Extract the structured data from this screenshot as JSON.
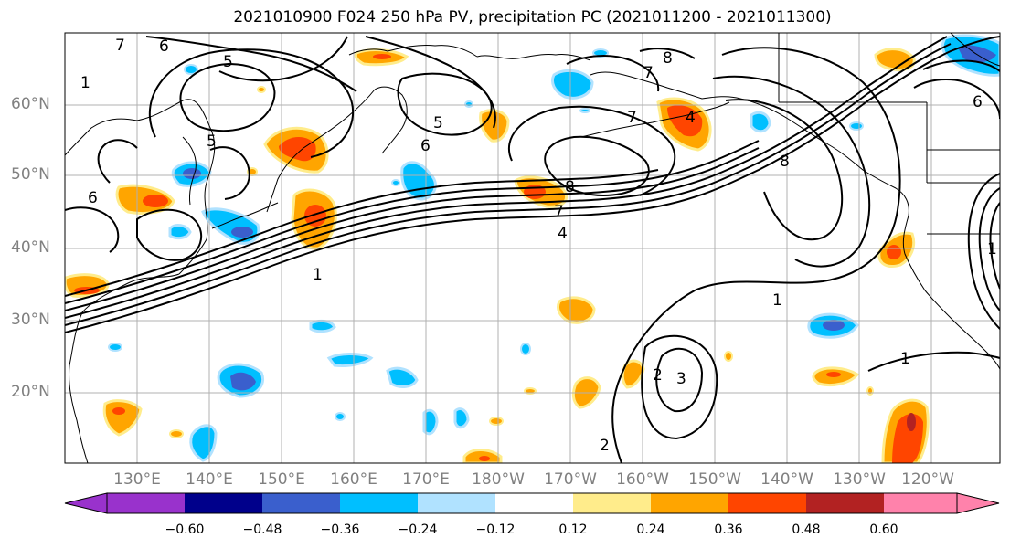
{
  "title": "2021010900 F024 250 hPa PV, precipitation PC (2021011200 - 2021011300)",
  "lat_labels": [
    "60°N",
    "50°N",
    "40°N",
    "30°N",
    "20°N"
  ],
  "lon_labels": [
    "130°E",
    "140°E",
    "150°E",
    "160°E",
    "170°E",
    "180°W",
    "170°W",
    "160°W",
    "150°W",
    "140°W",
    "130°W",
    "120°W"
  ],
  "colorbar": {
    "colors": [
      "#9932cc",
      "#00008b",
      "#3a5fcd",
      "#00bfff",
      "#b0e2ff",
      "#ffffff",
      "#ffec8b",
      "#ffa500",
      "#ff4500",
      "#b22222",
      "#ff82ab"
    ],
    "tick_labels": [
      "−0.60",
      "−0.48",
      "−0.36",
      "−0.24",
      "−0.12",
      "0.12",
      "0.24",
      "0.36",
      "0.48",
      "0.60"
    ]
  },
  "contour_labels": [
    "7",
    "6",
    "5",
    "5",
    "6",
    "5",
    "6",
    "4",
    "1",
    "7",
    "8",
    "7",
    "8",
    "7",
    "4",
    "1",
    "1",
    "8",
    "2",
    "3",
    "2",
    "1",
    "1",
    "6"
  ]
}
